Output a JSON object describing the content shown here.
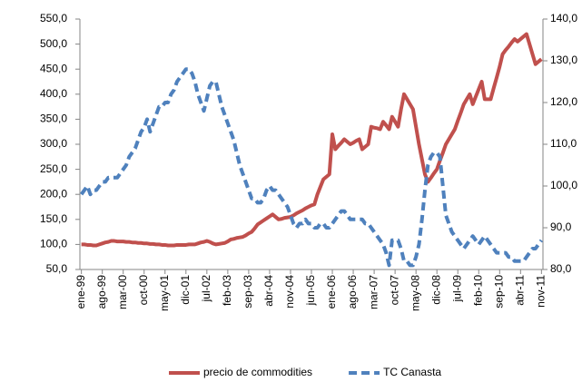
{
  "chart_data": {
    "type": "line",
    "categories": [
      "ene-99",
      null,
      null,
      null,
      null,
      null,
      null,
      "ago-99",
      null,
      null,
      null,
      null,
      null,
      null,
      "mar-00",
      null,
      null,
      null,
      null,
      null,
      null,
      "oct-00",
      null,
      null,
      null,
      null,
      null,
      null,
      "may-01",
      null,
      null,
      null,
      null,
      null,
      null,
      "dic-01",
      null,
      null,
      null,
      null,
      null,
      null,
      "jul-02",
      null,
      null,
      null,
      null,
      null,
      null,
      "feb-03",
      null,
      null,
      null,
      null,
      null,
      null,
      "sep-03",
      null,
      null,
      null,
      null,
      null,
      null,
      "abr-04",
      null,
      null,
      null,
      null,
      null,
      null,
      "nov-04",
      null,
      null,
      null,
      null,
      null,
      null,
      "jun-05",
      null,
      null,
      null,
      null,
      null,
      null,
      "ene-06",
      null,
      null,
      null,
      null,
      null,
      null,
      "ago-06",
      null,
      null,
      null,
      null,
      null,
      null,
      "mar-07",
      null,
      null,
      null,
      null,
      null,
      null,
      "oct-07",
      null,
      null,
      null,
      null,
      null,
      null,
      "may-08",
      null,
      null,
      null,
      null,
      null,
      null,
      "dic-08",
      null,
      null,
      null,
      null,
      null,
      null,
      "jul-09",
      null,
      null,
      null,
      null,
      null,
      null,
      "feb-10",
      null,
      null,
      null,
      null,
      null,
      null,
      "sep-10",
      null,
      null,
      null,
      null,
      null,
      null,
      "abr-11",
      null,
      null,
      null,
      null,
      null,
      null,
      "nov-11"
    ],
    "series": [
      {
        "name": "precio de commodities",
        "color": "#c0504d",
        "line_style": "solid",
        "axis": "y",
        "values": [
          100,
          100,
          99,
          99,
          98,
          98,
          100,
          102,
          104,
          105,
          107,
          107,
          106,
          106,
          106,
          105,
          105,
          104,
          104,
          103,
          103,
          102,
          102,
          101,
          101,
          100,
          100,
          99,
          99,
          98,
          98,
          98,
          99,
          99,
          99,
          99,
          100,
          100,
          100,
          102,
          104,
          105,
          107,
          105,
          102,
          100,
          101,
          102,
          103,
          106,
          110,
          111,
          113,
          114,
          115,
          118,
          122,
          125,
          132,
          140,
          144,
          148,
          152,
          156,
          160,
          155,
          150,
          151,
          153,
          154,
          155,
          158,
          162,
          165,
          168,
          172,
          175,
          178,
          180,
          200,
          215,
          230,
          235,
          240,
          320,
          290,
          297,
          303,
          310,
          305,
          300,
          303,
          307,
          310,
          290,
          295,
          300,
          335,
          333,
          332,
          330,
          345,
          338,
          330,
          355,
          345,
          335,
          370,
          400,
          390,
          380,
          370,
          335,
          300,
          270,
          240,
          225,
          233,
          242,
          250,
          267,
          283,
          300,
          310,
          320,
          330,
          347,
          363,
          380,
          390,
          400,
          380,
          395,
          410,
          425,
          390,
          390,
          390,
          412,
          433,
          455,
          480,
          488,
          495,
          503,
          510,
          505,
          510,
          515,
          520,
          500,
          480,
          460,
          465,
          470
        ]
      },
      {
        "name": "TC Canasta",
        "color": "#4f81bd",
        "line_style": "dashed",
        "axis": "y2",
        "values": [
          98,
          99,
          100,
          98,
          99,
          99,
          100,
          101,
          101,
          102,
          102,
          102,
          102,
          103,
          104,
          105,
          107,
          108,
          109,
          111,
          113,
          114,
          116,
          113,
          115,
          117,
          119,
          119,
          120,
          120,
          122,
          123,
          125,
          126,
          127,
          128,
          128,
          127,
          125,
          122,
          120,
          118,
          121,
          124,
          125,
          125,
          122,
          119,
          117,
          115,
          113,
          111,
          108,
          105,
          103,
          101,
          99,
          97,
          97,
          96,
          96,
          97,
          99,
          100,
          99,
          99,
          98,
          97,
          96,
          95,
          93,
          91,
          90,
          91,
          91,
          92,
          91,
          91,
          90,
          90,
          91,
          91,
          90,
          90,
          91,
          92,
          93,
          94,
          94,
          93,
          92,
          92,
          92,
          92,
          92,
          91,
          91,
          90,
          89,
          88,
          87,
          86,
          84,
          81,
          87,
          87,
          87,
          85,
          82,
          82,
          81,
          81,
          83,
          86,
          92,
          99,
          105,
          107,
          108,
          108,
          107,
          100,
          93,
          91,
          89,
          88,
          87,
          86,
          85,
          86,
          87,
          88,
          87,
          86,
          87,
          88,
          87,
          86,
          85,
          84,
          84,
          84,
          84,
          83,
          83,
          82,
          82,
          82,
          82,
          83,
          84,
          85,
          85,
          86,
          87
        ]
      }
    ],
    "ylim": [
      50,
      550
    ],
    "yticks": [
      {
        "value": 50,
        "label": "50,0"
      },
      {
        "value": 100,
        "label": "100,0"
      },
      {
        "value": 150,
        "label": "150,0"
      },
      {
        "value": 200,
        "label": "200,0"
      },
      {
        "value": 250,
        "label": "250,0"
      },
      {
        "value": 300,
        "label": "300,0"
      },
      {
        "value": 350,
        "label": "350,0"
      },
      {
        "value": 400,
        "label": "400,0"
      },
      {
        "value": 450,
        "label": "450,0"
      },
      {
        "value": 500,
        "label": "500,0"
      },
      {
        "value": 550,
        "label": "550,0"
      }
    ],
    "y2lim": [
      80,
      140
    ],
    "y2ticks": [
      {
        "value": 80,
        "label": "80,0"
      },
      {
        "value": 90,
        "label": "90,0"
      },
      {
        "value": 100,
        "label": "100,0"
      },
      {
        "value": 110,
        "label": "110,0"
      },
      {
        "value": 120,
        "label": "120,0"
      },
      {
        "value": 130,
        "label": "130,0"
      },
      {
        "value": 140,
        "label": "140,0"
      }
    ],
    "legend": "bottom"
  }
}
